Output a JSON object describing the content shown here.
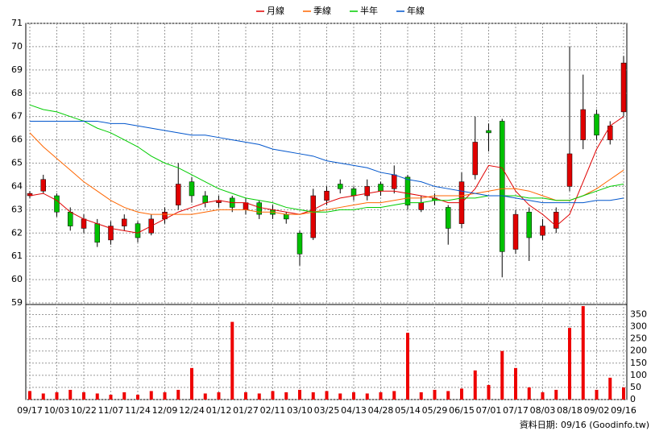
{
  "chart_data": {
    "type": "candlestick",
    "categories": [
      "09/17",
      null,
      "10/03",
      null,
      "10/22",
      null,
      "11/07",
      null,
      "11/24",
      null,
      "12/09",
      null,
      "12/24",
      null,
      "01/12",
      null,
      "01/27",
      null,
      "02/11",
      null,
      "03/10",
      null,
      "03/25",
      null,
      "04/13",
      null,
      "04/28",
      null,
      "05/14",
      null,
      "05/29",
      null,
      "06/15",
      null,
      "07/01",
      null,
      "07/17",
      null,
      "08/03",
      null,
      "08/18",
      null,
      "09/02",
      null,
      "09/16"
    ],
    "open": [
      63.6,
      63.8,
      63.6,
      62.9,
      62.2,
      62.4,
      61.7,
      62.3,
      62.4,
      62.0,
      62.6,
      63.2,
      64.2,
      63.6,
      63.3,
      63.5,
      63.0,
      63.3,
      63.0,
      62.8,
      62.0,
      61.8,
      63.4,
      64.1,
      63.9,
      63.6,
      64.1,
      63.9,
      64.4,
      63.0,
      63.5,
      63.1,
      62.4,
      64.5,
      66.4,
      66.8,
      61.3,
      62.9,
      61.9,
      62.2,
      64.0,
      66.0,
      67.1,
      66.0,
      67.2
    ],
    "high": [
      63.8,
      64.5,
      63.7,
      63.1,
      62.8,
      62.6,
      62.5,
      62.8,
      62.5,
      62.8,
      63.1,
      65.0,
      64.4,
      63.8,
      63.6,
      63.6,
      63.5,
      63.4,
      63.2,
      62.9,
      62.1,
      63.9,
      64.0,
      64.3,
      64.0,
      64.3,
      64.2,
      64.9,
      64.5,
      63.6,
      63.7,
      63.2,
      64.6,
      67.0,
      66.7,
      66.9,
      63.0,
      63.1,
      62.6,
      63.1,
      70.0,
      68.8,
      67.3,
      66.8,
      69.6
    ],
    "low": [
      63.5,
      63.7,
      62.7,
      62.1,
      62.0,
      61.4,
      61.5,
      62.1,
      61.6,
      61.9,
      62.4,
      63.0,
      63.3,
      63.1,
      63.1,
      62.9,
      62.8,
      62.6,
      62.6,
      62.4,
      60.6,
      61.7,
      63.2,
      63.7,
      63.4,
      63.4,
      63.6,
      63.7,
      63.0,
      62.9,
      63.2,
      61.5,
      62.2,
      64.3,
      65.5,
      60.1,
      61.1,
      60.8,
      61.7,
      62.0,
      63.8,
      65.6,
      66.0,
      65.8,
      67.0
    ],
    "close": [
      63.7,
      64.3,
      62.9,
      62.3,
      62.6,
      61.6,
      62.3,
      62.6,
      61.8,
      62.6,
      62.9,
      64.1,
      63.6,
      63.3,
      63.4,
      63.1,
      63.3,
      62.8,
      62.8,
      62.6,
      61.1,
      63.6,
      63.8,
      63.9,
      63.6,
      64.0,
      63.8,
      64.5,
      63.2,
      63.3,
      63.4,
      62.2,
      64.2,
      65.9,
      66.3,
      61.2,
      62.8,
      61.8,
      62.3,
      62.9,
      65.4,
      67.3,
      66.2,
      66.6,
      69.3
    ],
    "up_color": "#e00000",
    "down_color": "#00c000",
    "ylim": [
      59,
      71
    ],
    "yticks": [
      59,
      60,
      61,
      62,
      63,
      64,
      65,
      66,
      67,
      68,
      69,
      70,
      71
    ],
    "grid": true,
    "series": [
      {
        "name": "月線",
        "color": "#e00000",
        "values": [
          63.6,
          63.7,
          63.4,
          62.9,
          62.6,
          62.4,
          62.2,
          62.1,
          62.0,
          62.3,
          62.6,
          62.9,
          63.1,
          63.3,
          63.4,
          63.3,
          63.3,
          63.1,
          63.0,
          62.9,
          62.8,
          63.0,
          63.3,
          63.5,
          63.6,
          63.7,
          63.8,
          63.8,
          63.7,
          63.6,
          63.5,
          63.3,
          63.3,
          63.9,
          64.9,
          64.8,
          63.8,
          63.2,
          62.8,
          62.3,
          62.8,
          64.2,
          65.6,
          66.6,
          67.0
        ]
      },
      {
        "name": "季線",
        "color": "#ff6600",
        "values": [
          66.3,
          65.7,
          65.2,
          64.7,
          64.2,
          63.8,
          63.4,
          63.1,
          62.9,
          62.8,
          62.8,
          62.8,
          62.8,
          62.9,
          63.0,
          63.0,
          63.0,
          62.9,
          62.9,
          62.8,
          62.8,
          62.9,
          63.0,
          63.1,
          63.2,
          63.3,
          63.3,
          63.4,
          63.5,
          63.5,
          63.6,
          63.6,
          63.6,
          63.7,
          63.8,
          63.9,
          63.9,
          63.8,
          63.6,
          63.4,
          63.4,
          63.6,
          63.9,
          64.3,
          64.7
        ]
      },
      {
        "name": "半年",
        "color": "#00cc00",
        "values": [
          67.5,
          67.3,
          67.2,
          67.0,
          66.8,
          66.5,
          66.3,
          66.0,
          65.7,
          65.3,
          65.0,
          64.8,
          64.5,
          64.2,
          63.9,
          63.7,
          63.5,
          63.4,
          63.3,
          63.1,
          63.0,
          62.9,
          62.9,
          63.0,
          63.0,
          63.1,
          63.1,
          63.2,
          63.3,
          63.3,
          63.4,
          63.4,
          63.5,
          63.5,
          63.6,
          63.6,
          63.6,
          63.5,
          63.5,
          63.4,
          63.4,
          63.6,
          63.8,
          64.0,
          64.1
        ]
      },
      {
        "name": "年線",
        "color": "#0055cc",
        "values": [
          66.8,
          66.8,
          66.8,
          66.8,
          66.8,
          66.8,
          66.7,
          66.7,
          66.6,
          66.5,
          66.4,
          66.3,
          66.2,
          66.2,
          66.1,
          66.0,
          65.9,
          65.8,
          65.6,
          65.5,
          65.4,
          65.3,
          65.1,
          65.0,
          64.9,
          64.8,
          64.6,
          64.5,
          64.3,
          64.2,
          64.0,
          63.9,
          63.8,
          63.7,
          63.6,
          63.6,
          63.5,
          63.4,
          63.3,
          63.3,
          63.3,
          63.3,
          63.4,
          63.4,
          63.5
        ]
      }
    ],
    "volume": {
      "color": "#ee0000",
      "ylim": [
        0,
        385
      ],
      "yticks": [
        0,
        50,
        100,
        150,
        200,
        250,
        300,
        350
      ],
      "values": [
        35,
        25,
        30,
        40,
        30,
        25,
        20,
        30,
        20,
        35,
        30,
        40,
        130,
        25,
        30,
        320,
        30,
        25,
        35,
        30,
        40,
        30,
        35,
        25,
        30,
        25,
        30,
        35,
        275,
        30,
        40,
        35,
        45,
        120,
        60,
        200,
        130,
        50,
        30,
        40,
        295,
        385,
        40,
        90,
        50
      ]
    },
    "footer": "資料日期: 09/16  (Goodinfo.tw)"
  }
}
